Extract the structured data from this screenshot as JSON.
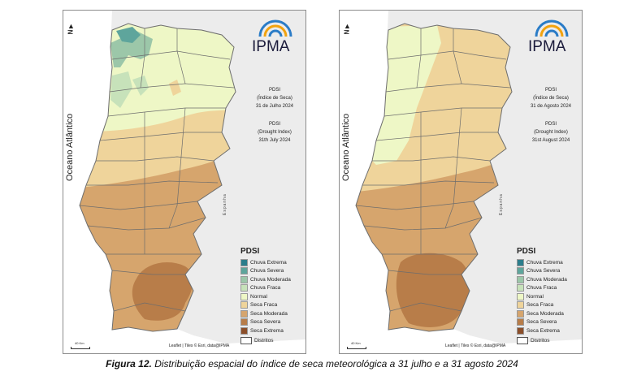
{
  "colors": {
    "chuva_extrema": "#2b7d8c",
    "chuva_severa": "#5ea59c",
    "chuva_moderada": "#9cc7a9",
    "chuva_fraca": "#c7e2ba",
    "normal": "#eef7c6",
    "seca_fraca": "#efd49b",
    "seca_moderada": "#d6a56d",
    "seca_severa": "#b87d49",
    "seca_extrema": "#8c4f2a",
    "land_spain": "#ececec",
    "ocean": "#ffffff",
    "border": "#6d6d6d"
  },
  "panels": [
    {
      "map_info": {
        "l1": "PDSI",
        "l2": "(Índice de Seca)",
        "l3": "31 de Julho 2024",
        "l4": "PDSI",
        "l5": "(Drought Index)",
        "l6": "31th July 2024"
      }
    },
    {
      "map_info": {
        "l1": "PDSI",
        "l2": "(Índice de Seca)",
        "l3": "31 de Agosto 2024",
        "l4": "PDSI",
        "l5": "(Drought Index)",
        "l6": "31st August 2024"
      }
    }
  ],
  "common": {
    "logo_text": "IPMA",
    "ocean_label": "Oceano Atlântico",
    "country_label": "Espanha",
    "north_label": "N",
    "legend_title": "PDSI",
    "legend": [
      "Chuva Extrema",
      "Chuva Severa",
      "Chuva Moderada",
      "Chuva Fraca",
      "Normal",
      "Seca Fraca",
      "Seca Moderada",
      "Seca Severa",
      "Seca Extrema"
    ],
    "legend_distritos": "Distritos",
    "attribution": "Leaflet | Tiles © Esri, data@IPMA",
    "scale_label": "40 Km"
  },
  "caption": {
    "label": "Figura 12.",
    "text": "Distribuição espacial do índice de seca meteorológica a 31 julho e a 31 agosto 2024"
  }
}
